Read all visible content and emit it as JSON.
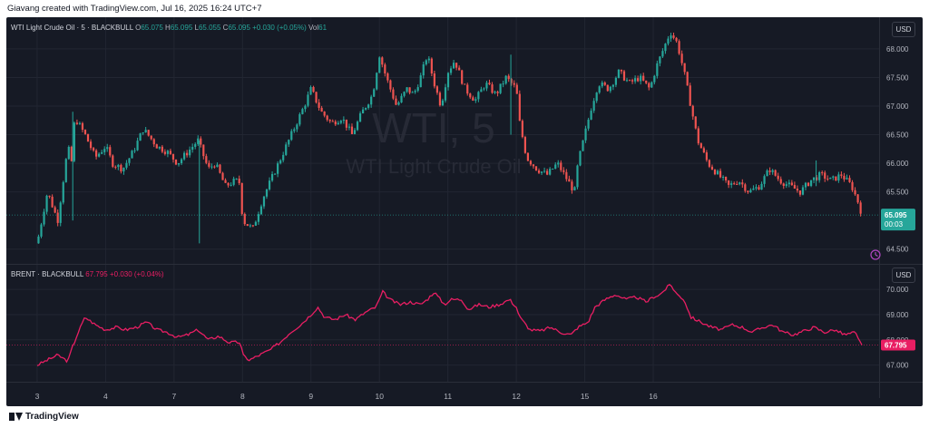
{
  "header": {
    "credit": "Giavang created with TradingView.com, Jul 16, 2025 16:24 UTC+7"
  },
  "footer": {
    "brand": "TradingView"
  },
  "colors": {
    "background": "#161a25",
    "up": "#26a69a",
    "down": "#ef5350",
    "brent": "#e91e63",
    "grid": "#222632",
    "text": "#b2b5be"
  },
  "panes": {
    "wti": {
      "symbol": "WTI Light Crude Oil · 5 · BLACKBULL",
      "o_label": "O",
      "o": "65.075",
      "h_label": "H",
      "h": "65.095",
      "l_label": "L",
      "l": "65.055",
      "c_label": "C",
      "c": "65.095",
      "change": "+0.030 (+0.05%)",
      "vol_label": "Vol",
      "vol": "61",
      "currency": "USD",
      "watermark_big": "WTI, 5",
      "watermark_small": "WTI Light Crude Oil",
      "price_tag": "65.095",
      "countdown": "00:03"
    },
    "brent": {
      "symbol": "BRENT · BLACKBULL",
      "last": "67.795",
      "change": "+0.030 (+0.04%)",
      "currency": "USD",
      "price_tag": "67.795"
    }
  },
  "chart_data": [
    {
      "type": "candlestick",
      "title": "WTI Light Crude Oil · 5 · BLACKBULL",
      "y_ticks": [
        "68.000",
        "67.500",
        "67.000",
        "66.500",
        "66.000",
        "65.500",
        "64.500"
      ],
      "ylim": [
        64.4,
        68.3
      ],
      "x_ticks": [
        "3",
        "4",
        "7",
        "8",
        "9",
        "10",
        "11",
        "12",
        "15",
        "16"
      ],
      "x_tick_index": [
        2,
        3,
        4,
        5,
        6,
        7,
        8,
        9,
        10,
        11
      ],
      "last": 65.095,
      "path": [
        [
          2.0,
          64.6
        ],
        [
          2.15,
          65.5
        ],
        [
          2.3,
          65.0
        ],
        [
          2.45,
          66.3
        ],
        [
          2.5,
          66.0
        ],
        [
          2.55,
          66.8
        ],
        [
          2.7,
          66.5
        ],
        [
          2.85,
          66.1
        ],
        [
          3.0,
          66.3
        ],
        [
          3.1,
          66.0
        ],
        [
          3.25,
          65.9
        ],
        [
          3.4,
          66.2
        ],
        [
          3.55,
          66.6
        ],
        [
          3.75,
          66.3
        ],
        [
          3.9,
          66.2
        ],
        [
          4.05,
          66.0
        ],
        [
          4.2,
          66.2
        ],
        [
          4.35,
          66.4
        ],
        [
          4.5,
          65.9
        ],
        [
          4.6,
          66.0
        ],
        [
          4.75,
          65.6
        ],
        [
          4.9,
          65.7
        ],
        [
          4.97,
          65.65
        ],
        [
          5.0,
          65.0
        ],
        [
          5.15,
          64.85
        ],
        [
          5.3,
          65.4
        ],
        [
          5.45,
          65.8
        ],
        [
          5.6,
          66.2
        ],
        [
          5.75,
          66.6
        ],
        [
          5.9,
          67.0
        ],
        [
          6.0,
          67.3
        ],
        [
          6.15,
          66.9
        ],
        [
          6.3,
          66.7
        ],
        [
          6.45,
          66.8
        ],
        [
          6.6,
          66.5
        ],
        [
          6.75,
          66.9
        ],
        [
          6.9,
          67.2
        ],
        [
          7.0,
          67.9
        ],
        [
          7.1,
          67.5
        ],
        [
          7.25,
          67.0
        ],
        [
          7.4,
          67.3
        ],
        [
          7.5,
          67.2
        ],
        [
          7.6,
          67.5
        ],
        [
          7.7,
          67.9
        ],
        [
          7.8,
          67.4
        ],
        [
          7.9,
          67.0
        ],
        [
          8.0,
          67.6
        ],
        [
          8.1,
          67.8
        ],
        [
          8.25,
          67.3
        ],
        [
          8.4,
          67.1
        ],
        [
          8.55,
          67.4
        ],
        [
          8.7,
          67.2
        ],
        [
          8.85,
          67.5
        ],
        [
          9.0,
          67.3
        ],
        [
          9.05,
          66.7
        ],
        [
          9.15,
          66.1
        ],
        [
          9.3,
          65.9
        ],
        [
          9.45,
          65.8
        ],
        [
          9.6,
          66.0
        ],
        [
          9.75,
          65.7
        ],
        [
          9.85,
          65.5
        ],
        [
          9.9,
          66.0
        ],
        [
          10.0,
          66.5
        ],
        [
          10.1,
          67.0
        ],
        [
          10.2,
          67.4
        ],
        [
          10.35,
          67.3
        ],
        [
          10.5,
          67.6
        ],
        [
          10.65,
          67.4
        ],
        [
          10.8,
          67.5
        ],
        [
          10.95,
          67.3
        ],
        [
          11.05,
          67.7
        ],
        [
          11.15,
          68.0
        ],
        [
          11.25,
          68.3
        ],
        [
          11.35,
          68.1
        ],
        [
          11.45,
          67.6
        ],
        [
          11.55,
          67.0
        ],
        [
          11.65,
          66.4
        ],
        [
          11.8,
          66.0
        ],
        [
          11.95,
          65.8
        ],
        [
          12.1,
          65.6
        ],
        [
          12.25,
          65.7
        ],
        [
          12.4,
          65.5
        ],
        [
          12.55,
          65.6
        ],
        [
          12.7,
          65.9
        ],
        [
          12.85,
          65.7
        ],
        [
          13.0,
          65.6
        ],
        [
          13.15,
          65.5
        ],
        [
          13.3,
          65.7
        ],
        [
          13.45,
          65.8
        ],
        [
          13.6,
          65.7
        ],
        [
          13.75,
          65.8
        ],
        [
          13.9,
          65.6
        ],
        [
          14.0,
          65.3
        ],
        [
          14.05,
          65.095
        ]
      ],
      "wicks": [
        [
          2.52,
          65.0,
          66.9
        ],
        [
          4.37,
          64.6,
          66.4
        ],
        [
          13.38,
          65.6,
          66.05
        ],
        [
          8.92,
          66.5,
          67.9
        ]
      ]
    },
    {
      "type": "line",
      "title": "BRENT · BLACKBULL",
      "y_ticks": [
        "70.000",
        "69.000",
        "68.000",
        "67.000"
      ],
      "ylim": [
        66.7,
        70.4
      ],
      "last": 67.795,
      "path": [
        [
          2.0,
          67.0
        ],
        [
          2.15,
          67.2
        ],
        [
          2.3,
          67.4
        ],
        [
          2.45,
          67.15
        ],
        [
          2.5,
          67.6
        ],
        [
          2.6,
          68.3
        ],
        [
          2.7,
          68.9
        ],
        [
          2.85,
          68.6
        ],
        [
          3.0,
          68.4
        ],
        [
          3.15,
          68.5
        ],
        [
          3.3,
          68.4
        ],
        [
          3.45,
          68.5
        ],
        [
          3.6,
          68.7
        ],
        [
          3.75,
          68.4
        ],
        [
          3.9,
          68.3
        ],
        [
          4.05,
          68.1
        ],
        [
          4.2,
          68.2
        ],
        [
          4.35,
          68.4
        ],
        [
          4.5,
          68.0
        ],
        [
          4.65,
          68.15
        ],
        [
          4.8,
          67.9
        ],
        [
          4.97,
          67.9
        ],
        [
          5.0,
          67.4
        ],
        [
          5.1,
          67.2
        ],
        [
          5.25,
          67.4
        ],
        [
          5.4,
          67.6
        ],
        [
          5.55,
          67.9
        ],
        [
          5.7,
          68.3
        ],
        [
          5.85,
          68.6
        ],
        [
          6.0,
          69.0
        ],
        [
          6.1,
          69.3
        ],
        [
          6.2,
          68.9
        ],
        [
          6.35,
          68.8
        ],
        [
          6.5,
          69.0
        ],
        [
          6.65,
          68.8
        ],
        [
          6.8,
          69.1
        ],
        [
          6.95,
          69.3
        ],
        [
          7.05,
          69.9
        ],
        [
          7.15,
          69.6
        ],
        [
          7.3,
          69.4
        ],
        [
          7.45,
          69.5
        ],
        [
          7.6,
          69.4
        ],
        [
          7.7,
          69.6
        ],
        [
          7.8,
          69.9
        ],
        [
          7.95,
          69.4
        ],
        [
          8.05,
          69.6
        ],
        [
          8.2,
          69.6
        ],
        [
          8.3,
          69.2
        ],
        [
          8.45,
          69.4
        ],
        [
          8.6,
          69.3
        ],
        [
          8.75,
          69.4
        ],
        [
          8.9,
          69.6
        ],
        [
          9.0,
          69.3
        ],
        [
          9.05,
          68.9
        ],
        [
          9.2,
          68.4
        ],
        [
          9.35,
          68.35
        ],
        [
          9.5,
          68.5
        ],
        [
          9.65,
          68.3
        ],
        [
          9.8,
          68.2
        ],
        [
          9.9,
          68.5
        ],
        [
          10.05,
          68.7
        ],
        [
          10.15,
          69.3
        ],
        [
          10.3,
          69.6
        ],
        [
          10.45,
          69.8
        ],
        [
          10.6,
          69.6
        ],
        [
          10.75,
          69.7
        ],
        [
          10.9,
          69.5
        ],
        [
          11.0,
          69.7
        ],
        [
          11.1,
          69.8
        ],
        [
          11.25,
          70.2
        ],
        [
          11.35,
          69.8
        ],
        [
          11.45,
          69.6
        ],
        [
          11.55,
          68.9
        ],
        [
          11.7,
          68.7
        ],
        [
          11.85,
          68.5
        ],
        [
          12.0,
          68.4
        ],
        [
          12.15,
          68.6
        ],
        [
          12.3,
          68.5
        ],
        [
          12.45,
          68.3
        ],
        [
          12.6,
          68.5
        ],
        [
          12.75,
          68.6
        ],
        [
          12.9,
          68.3
        ],
        [
          13.05,
          68.2
        ],
        [
          13.2,
          68.35
        ],
        [
          13.35,
          68.5
        ],
        [
          13.5,
          68.3
        ],
        [
          13.65,
          68.4
        ],
        [
          13.8,
          68.2
        ],
        [
          13.95,
          68.3
        ],
        [
          14.0,
          68.0
        ],
        [
          14.05,
          67.795
        ]
      ]
    }
  ]
}
